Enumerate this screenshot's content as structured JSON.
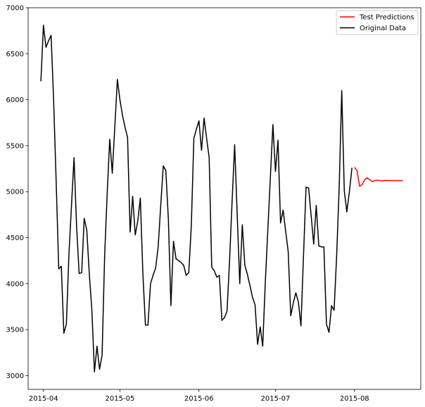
{
  "chart_data": {
    "type": "line",
    "title": "",
    "xlabel": "",
    "ylabel": "",
    "xlim": [
      "2015-03-26",
      "2015-08-27"
    ],
    "ylim": [
      2850,
      7000
    ],
    "grid": false,
    "legend_position": "top-right",
    "x_ticks": [
      "2015-04",
      "2015-05",
      "2015-06",
      "2015-07",
      "2015-08"
    ],
    "y_ticks": [
      3000,
      3500,
      4000,
      4500,
      5000,
      5500,
      6000,
      6500,
      7000
    ],
    "series": [
      {
        "name": "Test Predictions",
        "color": "#ff0000",
        "points": [
          [
            "2015-08-01",
            5265
          ],
          [
            "2015-08-02",
            5230
          ],
          [
            "2015-08-03",
            5060
          ],
          [
            "2015-08-04",
            5075
          ],
          [
            "2015-08-05",
            5130
          ],
          [
            "2015-08-06",
            5150
          ],
          [
            "2015-08-07",
            5130
          ],
          [
            "2015-08-08",
            5110
          ],
          [
            "2015-08-09",
            5120
          ],
          [
            "2015-08-10",
            5125
          ],
          [
            "2015-08-11",
            5120
          ],
          [
            "2015-08-12",
            5118
          ],
          [
            "2015-08-13",
            5122
          ],
          [
            "2015-08-14",
            5120
          ],
          [
            "2015-08-15",
            5120
          ],
          [
            "2015-08-16",
            5120
          ],
          [
            "2015-08-17",
            5120
          ],
          [
            "2015-08-18",
            5120
          ],
          [
            "2015-08-19",
            5120
          ],
          [
            "2015-08-20",
            5120
          ]
        ]
      },
      {
        "name": "Original Data",
        "color": "#000000",
        "points": [
          [
            "2015-03-31",
            6200
          ],
          [
            "2015-04-01",
            6810
          ],
          [
            "2015-04-02",
            6570
          ],
          [
            "2015-04-03",
            6640
          ],
          [
            "2015-04-04",
            6700
          ],
          [
            "2015-04-05",
            5990
          ],
          [
            "2015-04-06",
            5100
          ],
          [
            "2015-04-07",
            4160
          ],
          [
            "2015-04-08",
            4190
          ],
          [
            "2015-04-09",
            3460
          ],
          [
            "2015-04-10",
            3560
          ],
          [
            "2015-04-11",
            4320
          ],
          [
            "2015-04-12",
            4850
          ],
          [
            "2015-04-13",
            5370
          ],
          [
            "2015-04-14",
            4620
          ],
          [
            "2015-04-15",
            4110
          ],
          [
            "2015-04-16",
            4120
          ],
          [
            "2015-04-17",
            4710
          ],
          [
            "2015-04-18",
            4580
          ],
          [
            "2015-04-19",
            4100
          ],
          [
            "2015-04-20",
            3710
          ],
          [
            "2015-04-21",
            3040
          ],
          [
            "2015-04-22",
            3320
          ],
          [
            "2015-04-23",
            3070
          ],
          [
            "2015-04-24",
            3220
          ],
          [
            "2015-04-25",
            4300
          ],
          [
            "2015-04-26",
            4980
          ],
          [
            "2015-04-27",
            5570
          ],
          [
            "2015-04-28",
            5200
          ],
          [
            "2015-04-29",
            5710
          ],
          [
            "2015-04-30",
            6220
          ],
          [
            "2015-05-01",
            6000
          ],
          [
            "2015-05-02",
            5830
          ],
          [
            "2015-05-03",
            5700
          ],
          [
            "2015-05-04",
            5590
          ],
          [
            "2015-05-05",
            4560
          ],
          [
            "2015-05-06",
            4950
          ],
          [
            "2015-05-07",
            4530
          ],
          [
            "2015-05-08",
            4680
          ],
          [
            "2015-05-09",
            4930
          ],
          [
            "2015-05-10",
            4110
          ],
          [
            "2015-05-11",
            3550
          ],
          [
            "2015-05-12",
            3550
          ],
          [
            "2015-05-13",
            4000
          ],
          [
            "2015-05-14",
            4090
          ],
          [
            "2015-05-15",
            4170
          ],
          [
            "2015-05-16",
            4400
          ],
          [
            "2015-05-17",
            4850
          ],
          [
            "2015-05-18",
            5280
          ],
          [
            "2015-05-19",
            5230
          ],
          [
            "2015-05-20",
            4700
          ],
          [
            "2015-05-21",
            3760
          ],
          [
            "2015-05-22",
            4460
          ],
          [
            "2015-05-23",
            4270
          ],
          [
            "2015-05-24",
            4250
          ],
          [
            "2015-05-25",
            4230
          ],
          [
            "2015-05-26",
            4200
          ],
          [
            "2015-05-27",
            4090
          ],
          [
            "2015-05-28",
            4120
          ],
          [
            "2015-05-29",
            4630
          ],
          [
            "2015-05-30",
            5580
          ],
          [
            "2015-05-31",
            5680
          ],
          [
            "2015-06-01",
            5770
          ],
          [
            "2015-06-02",
            5450
          ],
          [
            "2015-06-03",
            5800
          ],
          [
            "2015-06-04",
            5580
          ],
          [
            "2015-06-05",
            5370
          ],
          [
            "2015-06-06",
            4180
          ],
          [
            "2015-06-07",
            4140
          ],
          [
            "2015-06-08",
            4070
          ],
          [
            "2015-06-09",
            4090
          ],
          [
            "2015-06-10",
            3600
          ],
          [
            "2015-06-11",
            3630
          ],
          [
            "2015-06-12",
            3700
          ],
          [
            "2015-06-13",
            4250
          ],
          [
            "2015-06-14",
            4900
          ],
          [
            "2015-06-15",
            5510
          ],
          [
            "2015-06-16",
            4750
          ],
          [
            "2015-06-17",
            4000
          ],
          [
            "2015-06-18",
            4640
          ],
          [
            "2015-06-19",
            4200
          ],
          [
            "2015-06-20",
            4100
          ],
          [
            "2015-06-21",
            3980
          ],
          [
            "2015-06-22",
            3850
          ],
          [
            "2015-06-23",
            3770
          ],
          [
            "2015-06-24",
            3340
          ],
          [
            "2015-06-25",
            3530
          ],
          [
            "2015-06-26",
            3320
          ],
          [
            "2015-06-27",
            4000
          ],
          [
            "2015-06-28",
            4580
          ],
          [
            "2015-06-29",
            5150
          ],
          [
            "2015-06-30",
            5730
          ],
          [
            "2015-07-01",
            5220
          ],
          [
            "2015-07-02",
            5560
          ],
          [
            "2015-07-03",
            4660
          ],
          [
            "2015-07-04",
            4800
          ],
          [
            "2015-07-05",
            4570
          ],
          [
            "2015-07-06",
            4350
          ],
          [
            "2015-07-07",
            3650
          ],
          [
            "2015-07-08",
            3790
          ],
          [
            "2015-07-09",
            3900
          ],
          [
            "2015-07-10",
            3800
          ],
          [
            "2015-07-11",
            3540
          ],
          [
            "2015-07-12",
            4300
          ],
          [
            "2015-07-13",
            5050
          ],
          [
            "2015-07-14",
            5040
          ],
          [
            "2015-07-15",
            4740
          ],
          [
            "2015-07-16",
            4430
          ],
          [
            "2015-07-17",
            4850
          ],
          [
            "2015-07-18",
            4410
          ],
          [
            "2015-07-19",
            4400
          ],
          [
            "2015-07-20",
            4400
          ],
          [
            "2015-07-21",
            3560
          ],
          [
            "2015-07-22",
            3470
          ],
          [
            "2015-07-23",
            3760
          ],
          [
            "2015-07-24",
            3710
          ],
          [
            "2015-07-25",
            4300
          ],
          [
            "2015-07-26",
            5050
          ],
          [
            "2015-07-27",
            6100
          ],
          [
            "2015-07-28",
            5010
          ],
          [
            "2015-07-29",
            4780
          ],
          [
            "2015-07-30",
            5000
          ],
          [
            "2015-07-31",
            5260
          ]
        ]
      }
    ]
  }
}
